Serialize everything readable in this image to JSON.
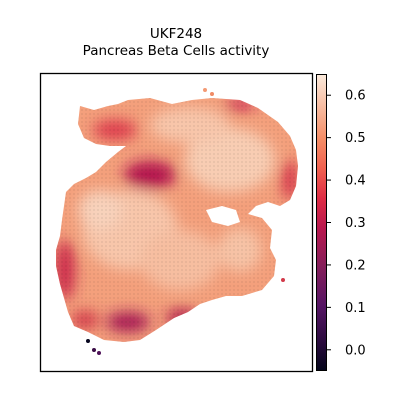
{
  "chart_data": {
    "type": "heatmap",
    "title": [
      "UKF248",
      "Pancreas Beta Cells activity"
    ],
    "xlabel": "",
    "ylabel": "",
    "axes_ticks_shown": false,
    "grid": false,
    "colormap": "rocket",
    "colorbar": {
      "position": "right",
      "range": [
        -0.05,
        0.65
      ],
      "ticks": [
        -0.0,
        0.1,
        0.2,
        0.3,
        0.4,
        0.5,
        0.6
      ],
      "tick_labels": [
        "0.0",
        "0.1",
        "0.2",
        "0.3",
        "0.4",
        "0.5",
        "0.6"
      ]
    },
    "value_summary": {
      "min": -0.03,
      "max": 0.62,
      "typical": 0.48,
      "low_value_regions": [
        "bottom-left edge",
        "upper-center band",
        "lower-center patches",
        "right edge"
      ],
      "high_value_regions": [
        "upper-right lobe interior",
        "left-center interior",
        "center"
      ]
    }
  },
  "colors": {
    "low": "#03051a",
    "mid": "#cb1b4f",
    "high": "#faebdd"
  }
}
